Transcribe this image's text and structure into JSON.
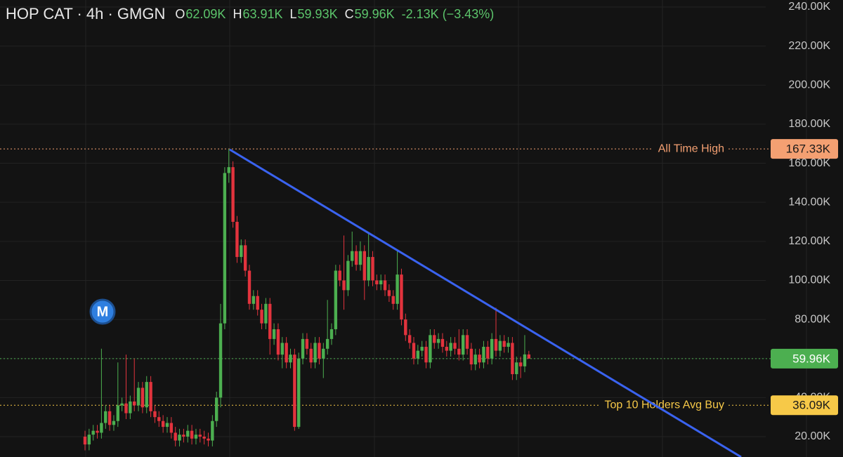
{
  "chart_data": {
    "type": "candlestick",
    "header": {
      "symbol": "HOP CAT · 4h · GMGN",
      "fields": [
        {
          "key": "O",
          "value": "62.09K"
        },
        {
          "key": "H",
          "value": "63.91K"
        },
        {
          "key": "L",
          "value": "59.93K"
        },
        {
          "key": "C",
          "value": "59.96K"
        }
      ],
      "change": "-2.13K (−3.43%)"
    },
    "marker": "M",
    "up_color": "#4caf50",
    "down_color": "#e2333d",
    "ylim": [
      9.57,
      243.6
    ],
    "yticks": [
      {
        "value": 20,
        "label": "20.00K"
      },
      {
        "value": 40,
        "label": "40.00K"
      },
      {
        "value": 60,
        "label": "60.00K"
      },
      {
        "value": 80,
        "label": "80.00K"
      },
      {
        "value": 100,
        "label": "100.00K"
      },
      {
        "value": 120,
        "label": "120.00K"
      },
      {
        "value": 140,
        "label": "140.00K"
      },
      {
        "value": 160,
        "label": "160.00K"
      },
      {
        "value": 180,
        "label": "180.00K"
      },
      {
        "value": 200,
        "label": "200.00K"
      },
      {
        "value": 220,
        "label": "220.00K"
      },
      {
        "value": 240,
        "label": "240.00K"
      }
    ],
    "grid": true,
    "price_lines": [
      {
        "name": "All Time High",
        "value": 167.33,
        "label": "167.33K",
        "color": "#f4a072"
      },
      {
        "value": 59.96,
        "label": "59.96K",
        "color": "#4caf50"
      },
      {
        "name": "Top 10 Holders Avg Buy",
        "value": 36.09,
        "label": "36.09K",
        "color": "#f7c948"
      }
    ],
    "open": [
      20,
      16,
      21,
      23,
      22,
      27,
      33,
      26,
      28,
      36,
      37,
      32,
      38,
      36,
      45,
      35,
      48,
      33,
      30,
      28,
      25,
      27,
      22,
      18,
      21,
      20,
      23,
      19,
      21,
      20,
      19,
      18,
      28,
      40,
      78,
      155,
      158,
      130,
      112,
      118,
      105,
      88,
      92,
      85,
      78,
      88,
      70,
      75,
      62,
      68,
      58,
      62,
      25,
      60,
      70,
      65,
      58,
      68,
      60,
      65,
      70,
      75,
      105,
      100,
      95,
      110,
      115,
      108,
      115,
      100,
      112,
      100,
      98,
      100,
      95,
      92,
      88,
      103,
      80,
      72,
      68,
      60,
      64,
      66,
      58,
      72,
      68,
      70,
      66,
      64,
      68,
      65,
      62,
      72,
      65,
      57,
      62,
      58,
      66,
      60,
      70,
      64,
      69,
      66,
      68,
      52,
      58,
      56,
      62.09
    ],
    "high": [
      23,
      24,
      26,
      26,
      65,
      36,
      36,
      31,
      58,
      40,
      62,
      41,
      60,
      48,
      48,
      51,
      51,
      36,
      33,
      31,
      30,
      30,
      25,
      24,
      24,
      26,
      26,
      24,
      24,
      23,
      22,
      31,
      43,
      88,
      158,
      167.33,
      161,
      133,
      121,
      121,
      108,
      95,
      95,
      88,
      91,
      91,
      78,
      78,
      71,
      71,
      65,
      65,
      63,
      73,
      73,
      68,
      71,
      71,
      68,
      90,
      78,
      108,
      108,
      123,
      113,
      125,
      118,
      120,
      118,
      124,
      115,
      103,
      103,
      103,
      98,
      95,
      115,
      106,
      83,
      75,
      71,
      67,
      69,
      69,
      75,
      75,
      73,
      73,
      69,
      71,
      71,
      75,
      75,
      75,
      68,
      65,
      65,
      69,
      69,
      73,
      86,
      72,
      72,
      71,
      71,
      61,
      61,
      72,
      63.91
    ],
    "low": [
      13,
      13,
      18,
      19,
      19,
      24,
      23,
      23,
      25,
      33,
      29,
      29,
      33,
      33,
      32,
      32,
      30,
      27,
      25,
      22,
      22,
      19,
      15,
      15,
      17,
      17,
      16,
      16,
      17,
      16,
      15,
      15,
      25,
      35,
      75,
      150,
      127,
      109,
      109,
      102,
      85,
      85,
      82,
      75,
      75,
      62,
      67,
      59,
      55,
      55,
      55,
      23,
      24,
      57,
      62,
      55,
      55,
      57,
      50,
      62,
      67,
      72,
      97,
      85,
      92,
      107,
      105,
      105,
      90,
      97,
      97,
      95,
      95,
      92,
      89,
      85,
      85,
      77,
      69,
      65,
      57,
      57,
      61,
      55,
      55,
      65,
      65,
      63,
      61,
      61,
      62,
      59,
      59,
      62,
      54,
      54,
      55,
      55,
      57,
      57,
      61,
      61,
      63,
      63,
      49,
      49,
      50,
      53,
      59.93
    ],
    "close": [
      16,
      21,
      23,
      22,
      27,
      33,
      26,
      28,
      36,
      37,
      32,
      38,
      36,
      45,
      35,
      48,
      33,
      30,
      28,
      25,
      27,
      22,
      18,
      21,
      20,
      23,
      19,
      21,
      20,
      19,
      18,
      28,
      40,
      78,
      155,
      158,
      130,
      112,
      118,
      105,
      88,
      92,
      85,
      78,
      88,
      70,
      75,
      62,
      68,
      58,
      62,
      25,
      60,
      70,
      65,
      58,
      68,
      60,
      65,
      70,
      75,
      105,
      100,
      95,
      110,
      115,
      108,
      115,
      100,
      112,
      100,
      98,
      100,
      95,
      92,
      88,
      103,
      80,
      72,
      68,
      60,
      64,
      66,
      58,
      72,
      68,
      70,
      66,
      64,
      68,
      65,
      62,
      72,
      65,
      57,
      62,
      58,
      66,
      60,
      70,
      64,
      69,
      66,
      68,
      52,
      58,
      56,
      62.09,
      59.96
    ]
  }
}
